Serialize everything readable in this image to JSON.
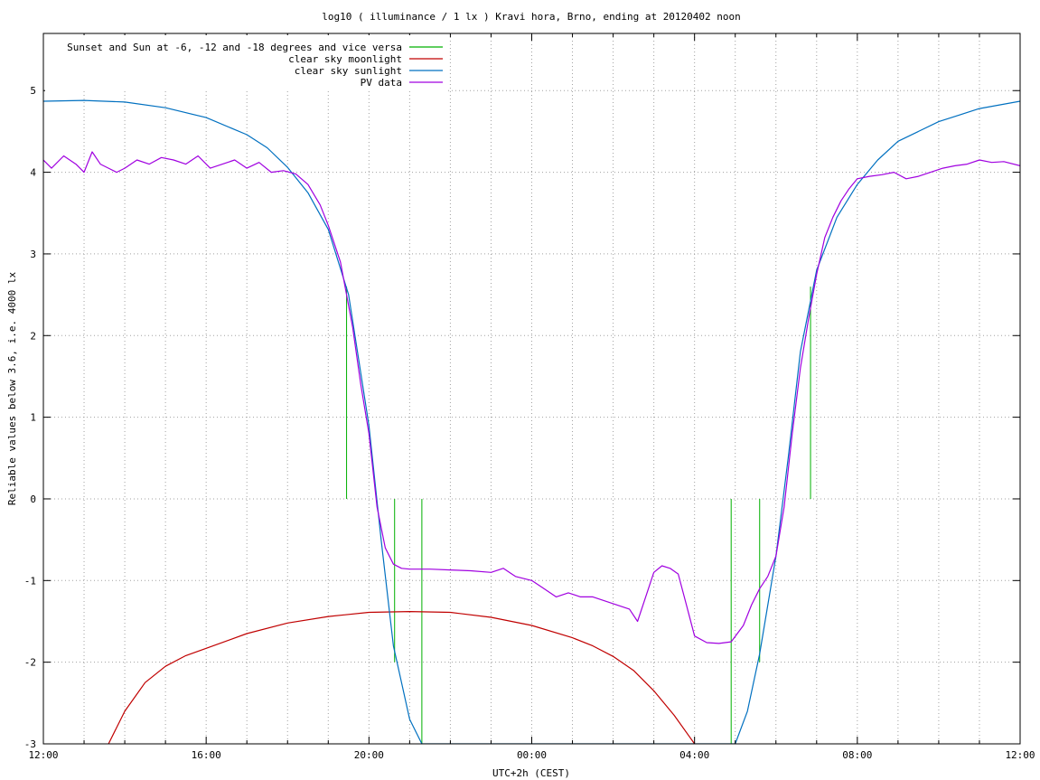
{
  "chart_data": {
    "type": "line",
    "title": "log10 ( illuminance / 1 lx ) Kravi hora, Brno, ending at 20120402 noon",
    "xlabel": "UTC+2h (CEST)",
    "ylabel": "Reliable values below 3.6, i.e. 4000 lx",
    "xlim": [
      0,
      24
    ],
    "ylim": [
      -3,
      5.7
    ],
    "x_ticks": [
      {
        "value": 0,
        "label": "12:00"
      },
      {
        "value": 4,
        "label": "16:00"
      },
      {
        "value": 8,
        "label": "20:00"
      },
      {
        "value": 12,
        "label": "00:00"
      },
      {
        "value": 16,
        "label": "04:00"
      },
      {
        "value": 20,
        "label": "08:00"
      },
      {
        "value": 24,
        "label": "12:00"
      }
    ],
    "x_minor_step": 1,
    "y_ticks": [
      {
        "value": -3,
        "label": "-3"
      },
      {
        "value": -2,
        "label": "-2"
      },
      {
        "value": -1,
        "label": "-1"
      },
      {
        "value": 0,
        "label": "0"
      },
      {
        "value": 1,
        "label": "1"
      },
      {
        "value": 2,
        "label": "2"
      },
      {
        "value": 3,
        "label": "3"
      },
      {
        "value": 4,
        "label": "4"
      },
      {
        "value": 5,
        "label": "5"
      }
    ],
    "grid": true,
    "legend_position": "top-left",
    "series": [
      {
        "name": "Sunset and Sun at -6, -12 and -18 degrees and vice versa",
        "color": "#00b000",
        "kind": "vlines",
        "lines": [
          {
            "x": 7.45,
            "y": 2.6
          },
          {
            "x": 8.0,
            "y": 0.0
          },
          {
            "x": 8.63,
            "y": -2.0
          },
          {
            "x": 9.3,
            "y": -3.0
          },
          {
            "x": 16.9,
            "y": -3.0
          },
          {
            "x": 17.6,
            "y": -2.0
          },
          {
            "x": 18.3,
            "y": 0.0
          },
          {
            "x": 18.85,
            "y": 2.6
          }
        ]
      },
      {
        "name": "clear sky moonlight",
        "color": "#c00000",
        "x": [
          1.6,
          2.0,
          2.5,
          3.0,
          3.5,
          4.0,
          5.0,
          6.0,
          7.0,
          8.0,
          9.0,
          10.0,
          11.0,
          12.0,
          13.0,
          13.5,
          14.0,
          14.5,
          15.0,
          15.5,
          16.0
        ],
        "y": [
          -3.0,
          -2.6,
          -2.25,
          -2.05,
          -1.92,
          -1.83,
          -1.65,
          -1.52,
          -1.44,
          -1.39,
          -1.38,
          -1.39,
          -1.45,
          -1.55,
          -1.7,
          -1.8,
          -1.93,
          -2.1,
          -2.35,
          -2.65,
          -3.0
        ]
      },
      {
        "name": "clear sky sunlight",
        "color": "#0070c0",
        "x": [
          0,
          1,
          2,
          3,
          4,
          5,
          5.5,
          6,
          6.5,
          7.0,
          7.5,
          8.0,
          8.3,
          8.6,
          9.0,
          9.3,
          17.0,
          17.3,
          17.6,
          18.0,
          18.3,
          18.6,
          19.0,
          19.5,
          20.0,
          20.5,
          21.0,
          22.0,
          23.0,
          24.0
        ],
        "y": [
          4.87,
          4.88,
          4.86,
          4.79,
          4.67,
          4.46,
          4.3,
          4.06,
          3.75,
          3.3,
          2.5,
          0.9,
          -0.5,
          -1.8,
          -2.7,
          -3.0,
          -3.0,
          -2.6,
          -1.9,
          -0.7,
          0.5,
          1.8,
          2.8,
          3.45,
          3.85,
          4.15,
          4.38,
          4.62,
          4.78,
          4.87
        ]
      },
      {
        "name": "PV data",
        "color": "#a000e0",
        "x": [
          0,
          0.2,
          0.5,
          0.8,
          1.0,
          1.2,
          1.4,
          1.6,
          1.8,
          2.0,
          2.3,
          2.6,
          2.9,
          3.2,
          3.5,
          3.8,
          4.1,
          4.4,
          4.7,
          5.0,
          5.3,
          5.6,
          5.9,
          6.2,
          6.5,
          6.8,
          7.0,
          7.3,
          7.6,
          7.8,
          8.0,
          8.2,
          8.4,
          8.6,
          8.8,
          9.0,
          9.5,
          10.0,
          10.5,
          11.0,
          11.3,
          11.6,
          12.0,
          12.3,
          12.6,
          12.9,
          13.2,
          13.5,
          13.8,
          14.1,
          14.4,
          14.6,
          14.8,
          15.0,
          15.2,
          15.4,
          15.6,
          15.8,
          16.0,
          16.3,
          16.6,
          16.9,
          17.2,
          17.4,
          17.6,
          17.8,
          18.0,
          18.2,
          18.4,
          18.6,
          18.8,
          19.0,
          19.2,
          19.4,
          19.6,
          19.8,
          20.0,
          20.3,
          20.6,
          20.9,
          21.2,
          21.5,
          21.8,
          22.1,
          22.4,
          22.7,
          23.0,
          23.3,
          23.6,
          24.0
        ],
        "y": [
          4.15,
          4.05,
          4.2,
          4.1,
          4.0,
          4.25,
          4.1,
          4.05,
          4.0,
          4.05,
          4.15,
          4.1,
          4.18,
          4.15,
          4.1,
          4.2,
          4.05,
          4.1,
          4.15,
          4.05,
          4.12,
          4.0,
          4.02,
          3.98,
          3.85,
          3.6,
          3.35,
          2.9,
          2.1,
          1.4,
          0.8,
          -0.1,
          -0.6,
          -0.8,
          -0.85,
          -0.86,
          -0.86,
          -0.87,
          -0.88,
          -0.9,
          -0.85,
          -0.95,
          -1.0,
          -1.1,
          -1.2,
          -1.15,
          -1.2,
          -1.2,
          -1.25,
          -1.3,
          -1.35,
          -1.5,
          -1.2,
          -0.9,
          -0.82,
          -0.85,
          -0.92,
          -1.3,
          -1.68,
          -1.76,
          -1.77,
          -1.75,
          -1.55,
          -1.3,
          -1.1,
          -0.95,
          -0.7,
          -0.1,
          0.8,
          1.6,
          2.2,
          2.75,
          3.2,
          3.45,
          3.65,
          3.8,
          3.92,
          3.95,
          3.97,
          4.0,
          3.92,
          3.95,
          4.0,
          4.05,
          4.08,
          4.1,
          4.15,
          4.12,
          4.13,
          4.08
        ]
      }
    ]
  }
}
